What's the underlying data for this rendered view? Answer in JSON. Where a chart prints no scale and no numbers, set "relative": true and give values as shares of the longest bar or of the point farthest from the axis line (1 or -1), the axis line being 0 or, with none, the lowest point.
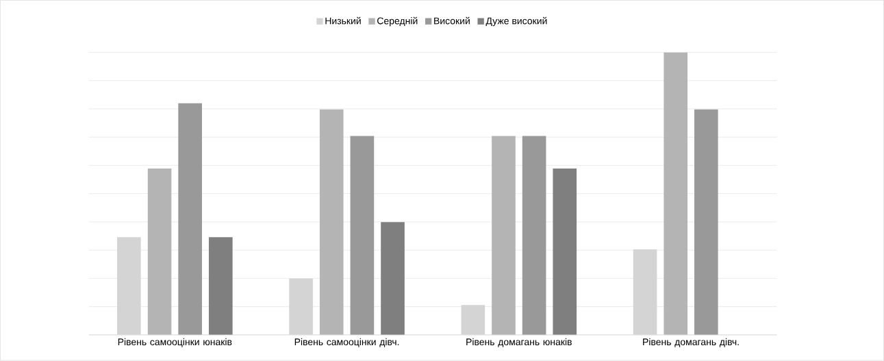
{
  "chart_data": {
    "type": "bar",
    "relative": true,
    "grid": "y",
    "legend": "top",
    "categories": [
      "Рівень самооцінки юнаків",
      "Рівень самооцінки дівч.",
      "Рівень домагань юнаків",
      "Рівень домагань дівч."
    ],
    "series": [
      {
        "name": "Низький",
        "color": "#d4d4d4",
        "values": [
          0.346,
          0.2,
          0.106,
          0.303
        ]
      },
      {
        "name": "Середній",
        "color": "#b4b4b4",
        "values": [
          0.589,
          0.798,
          0.704,
          1
        ]
      },
      {
        "name": "Високий",
        "color": "#999999",
        "values": [
          0.82,
          0.704,
          0.704,
          0.798
        ]
      },
      {
        "name": "Дуже високий",
        "color": "#7f7f7f",
        "values": [
          0.346,
          0.399,
          0.589,
          null
        ]
      }
    ]
  }
}
